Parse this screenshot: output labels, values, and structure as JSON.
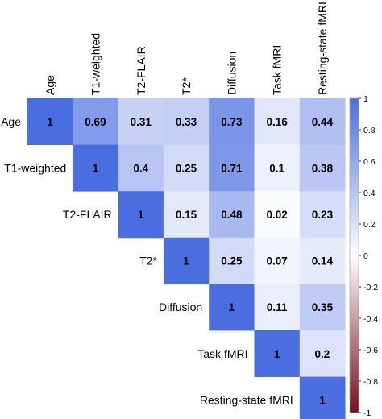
{
  "chart_data": {
    "type": "heatmap",
    "variables": [
      "Age",
      "T1-weighted",
      "T2-FLAIR",
      "T2*",
      "Diffusion",
      "Task fMRI",
      "Resting-state fMRI"
    ],
    "matrix": [
      [
        1,
        0.69,
        0.31,
        0.33,
        0.73,
        0.16,
        0.44
      ],
      [
        null,
        1,
        0.4,
        0.25,
        0.71,
        0.1,
        0.38
      ],
      [
        null,
        null,
        1,
        0.15,
        0.48,
        0.02,
        0.23
      ],
      [
        null,
        null,
        null,
        1,
        0.25,
        0.07,
        0.14
      ],
      [
        null,
        null,
        null,
        null,
        1,
        0.11,
        0.35
      ],
      [
        null,
        null,
        null,
        null,
        null,
        1,
        0.2
      ],
      [
        null,
        null,
        null,
        null,
        null,
        null,
        1
      ]
    ],
    "colorbar": {
      "ticks": [
        "1",
        "0.8",
        "0.6",
        "0.4",
        "0.2",
        "0",
        "-0.2",
        "-0.4",
        "-0.6",
        "-0.8",
        "-1"
      ],
      "range": [
        -1,
        1
      ],
      "color_positive": "#4a6ee0",
      "color_mid": "#ffffff",
      "color_negative": "#7a0c1c"
    }
  }
}
